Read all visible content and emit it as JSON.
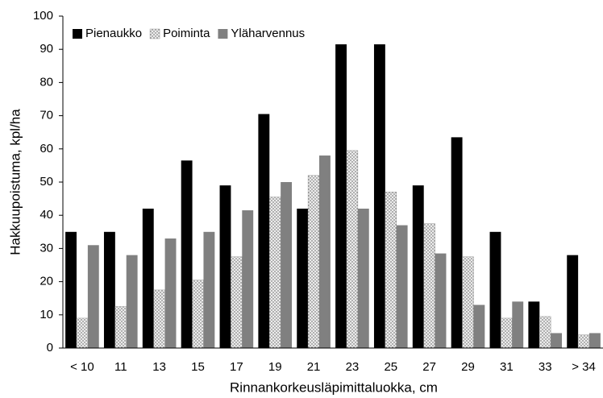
{
  "chart_data": {
    "type": "bar",
    "xlabel": "Rinnankorkeusläpimittaluokka, cm",
    "ylabel": "Hakkuupoistuma, kpl/ha",
    "categories": [
      "< 10",
      "11",
      "13",
      "15",
      "17",
      "19",
      "21",
      "23",
      "25",
      "27",
      "29",
      "31",
      "33",
      "> 34"
    ],
    "series": [
      {
        "name": "Pienaukko",
        "color": "#000000",
        "values": [
          35,
          35,
          42,
          56.5,
          49,
          70.5,
          42,
          91.5,
          91.5,
          49,
          63.5,
          35,
          14,
          28
        ]
      },
      {
        "name": "Poiminta",
        "color": "#ececec",
        "hatch": "dotted",
        "values": [
          9,
          12.5,
          17.5,
          20.5,
          27.5,
          45.5,
          52,
          59.5,
          47,
          37.5,
          27.5,
          9,
          9.5,
          4
        ]
      },
      {
        "name": "Yläharvennus",
        "color": "#808080",
        "values": [
          31,
          28,
          33,
          35,
          41.5,
          50,
          58,
          42,
          37,
          28.5,
          13,
          14,
          4.5,
          4.5
        ]
      }
    ],
    "ylim": [
      0,
      100
    ],
    "yticks": [
      0,
      10,
      20,
      30,
      40,
      50,
      60,
      70,
      80,
      90,
      100
    ],
    "legend": "top-left"
  }
}
